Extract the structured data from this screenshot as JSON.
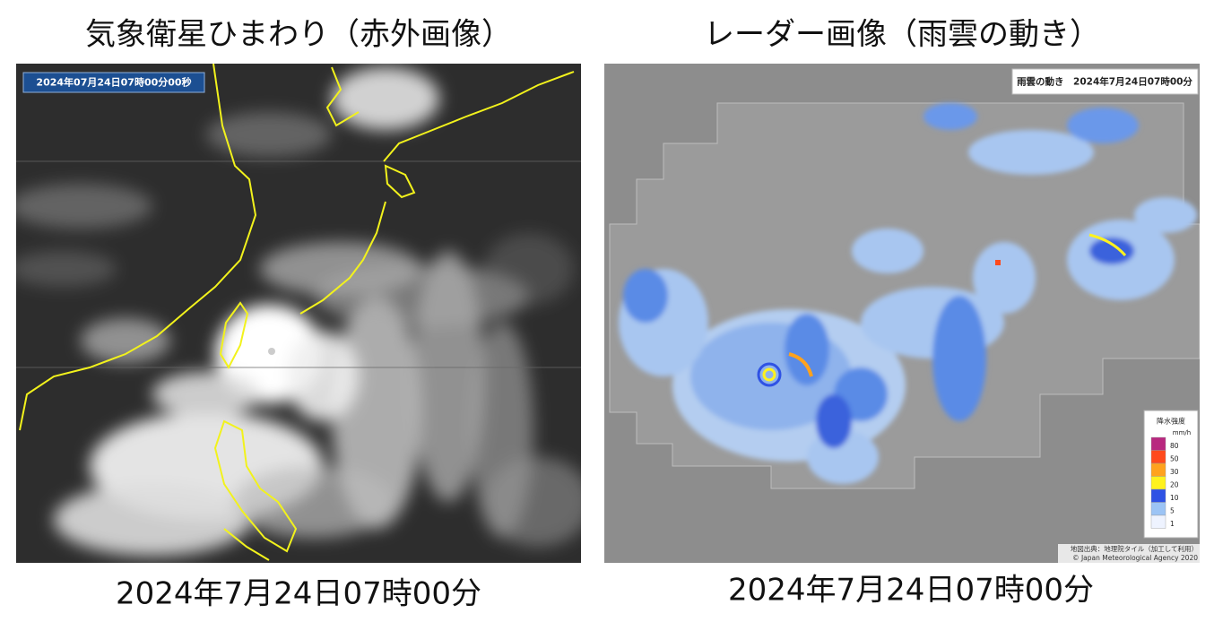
{
  "left_panel": {
    "title": "気象衛星ひまわり（赤外画像）",
    "timestamp_overlay": "2024年07月24日07時00分00秒",
    "caption": "2024年7月24日07時00分"
  },
  "right_panel": {
    "title": "レーダー画像（雨雲の動き）",
    "header_overlay": "雨雲の動き　2024年7月24日07時00分",
    "legend": {
      "title": "降水強度",
      "unit": "mm/h",
      "levels": [
        {
          "label": "80",
          "color": "#b8287f"
        },
        {
          "label": "50",
          "color": "#ff4a1c"
        },
        {
          "label": "30",
          "color": "#ffa21e"
        },
        {
          "label": "20",
          "color": "#fff21e"
        },
        {
          "label": "10",
          "color": "#2f52e4"
        },
        {
          "label": "5",
          "color": "#9cc4f5"
        },
        {
          "label": "1",
          "color": "#eef3ff"
        }
      ]
    },
    "credit": [
      "地図出典：地理院タイル（加工して利用）",
      "© Japan Meteorological Agency 2020"
    ],
    "caption": "2024年7月24日07時00分"
  }
}
